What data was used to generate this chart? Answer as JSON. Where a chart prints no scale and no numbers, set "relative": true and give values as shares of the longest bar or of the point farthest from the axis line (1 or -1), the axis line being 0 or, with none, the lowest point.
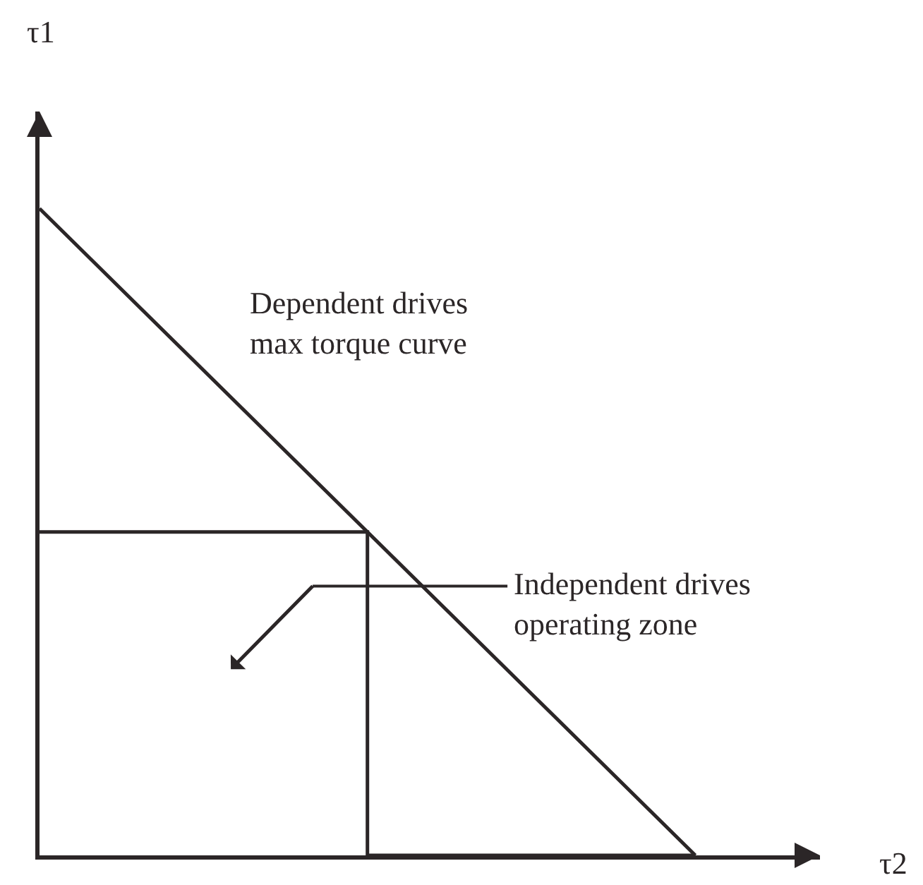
{
  "chart_data": {
    "type": "line",
    "relative": true,
    "xlabel": "τ2",
    "categories": [
      null,
      null,
      null
    ],
    "series": [
      {
        "values": [
          1,
          0.5,
          0
        ],
        "color": "#2b2627"
      },
      {
        "type": "step",
        "values": [
          0.5,
          0.5,
          0
        ],
        "color": "#2b2627"
      }
    ],
    "annotations": [
      "τ1",
      "Dependent drives\nmax torque curve",
      "Independent drives\noperating zone"
    ]
  }
}
